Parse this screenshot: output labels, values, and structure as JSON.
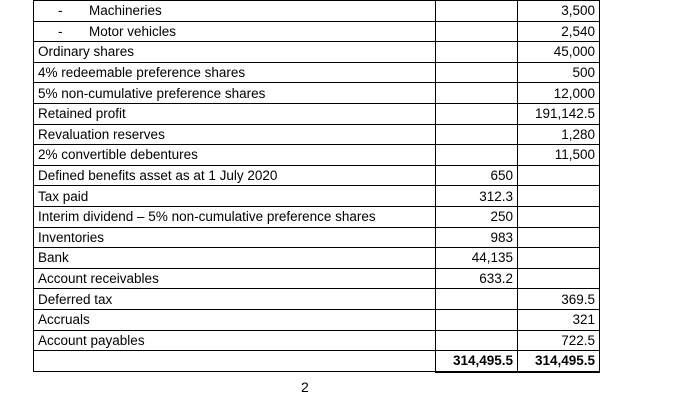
{
  "rows": [
    {
      "label": "Machineries",
      "sub": true,
      "debit": "",
      "credit": "3,500"
    },
    {
      "label": "Motor vehicles",
      "sub": true,
      "debit": "",
      "credit": "2,540"
    },
    {
      "label": "Ordinary shares",
      "debit": "",
      "credit": "45,000"
    },
    {
      "label": "4% redeemable preference shares",
      "debit": "",
      "credit": "500"
    },
    {
      "label": "5% non-cumulative preference shares",
      "debit": "",
      "credit": "12,000"
    },
    {
      "label": "Retained profit",
      "debit": "",
      "credit": "191,142.5"
    },
    {
      "label": "Revaluation reserves",
      "debit": "",
      "credit": "1,280"
    },
    {
      "label": "2% convertible debentures",
      "debit": "",
      "credit": "11,500"
    },
    {
      "label": "Defined benefits asset as at 1 July 2020",
      "debit": "650",
      "credit": ""
    },
    {
      "label": "Tax paid",
      "debit": "312.3",
      "credit": ""
    },
    {
      "label": "Interim dividend – 5% non-cumulative preference shares",
      "debit": "250",
      "credit": ""
    },
    {
      "label": "Inventories",
      "debit": "983",
      "credit": ""
    },
    {
      "label": "Bank",
      "debit": "44,135",
      "credit": ""
    },
    {
      "label": "Account receivables",
      "debit": "633.2",
      "credit": ""
    },
    {
      "label": "Deferred tax",
      "debit": "",
      "credit": "369.5"
    },
    {
      "label": "Accruals",
      "debit": "",
      "credit": "321"
    },
    {
      "label": "Account payables",
      "debit": "",
      "credit": "722.5"
    }
  ],
  "dash_glyph": "-",
  "totals": {
    "label": "",
    "debit": "314,495.5",
    "credit": "314,495.5"
  },
  "page_number": "2"
}
